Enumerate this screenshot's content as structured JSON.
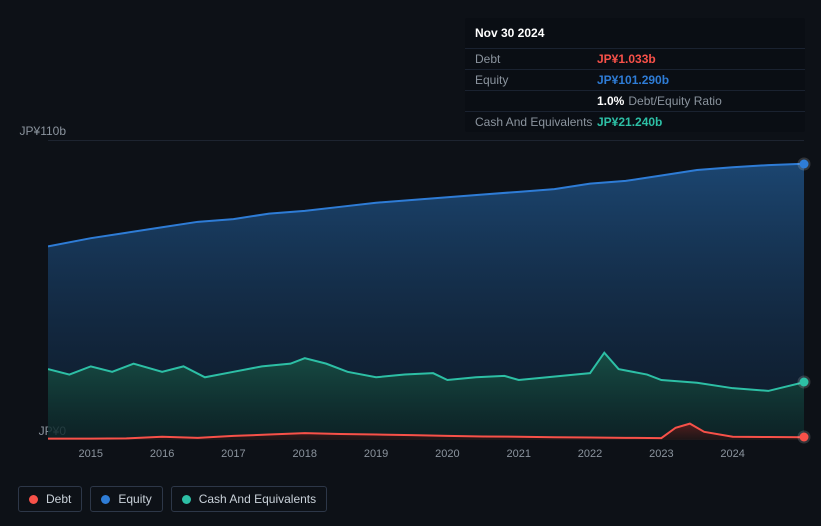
{
  "tooltip": {
    "date": "Nov 30 2024",
    "rows": [
      {
        "label": "Debt",
        "value": "JP¥1.033b",
        "color": "#f85149"
      },
      {
        "label": "Equity",
        "value": "JP¥101.290b",
        "color": "#2e7cd6"
      },
      {
        "label": "",
        "value": "1.0%",
        "sub": "Debt/Equity Ratio",
        "color": "#ffffff"
      },
      {
        "label": "Cash And Equivalents",
        "value": "JP¥21.240b",
        "color": "#2dbfa5"
      }
    ]
  },
  "chart": {
    "type": "area",
    "background_color": "#0d1117",
    "y_axis": {
      "top_label": "JP¥110b",
      "bottom_label": "JP¥0",
      "min": 0,
      "max": 110
    },
    "x_ticks": [
      "2015",
      "2016",
      "2017",
      "2018",
      "2019",
      "2020",
      "2021",
      "2022",
      "2023",
      "2024"
    ],
    "x_min": 2014.4,
    "x_max": 2025.0,
    "series": {
      "equity": {
        "color": "#2e7cd6",
        "fill_top": "#1d4b7a",
        "fill_bottom": "#0f2238",
        "points": [
          [
            2014.4,
            71
          ],
          [
            2015,
            74
          ],
          [
            2015.5,
            76
          ],
          [
            2016,
            78
          ],
          [
            2016.5,
            80
          ],
          [
            2017,
            81
          ],
          [
            2017.5,
            83
          ],
          [
            2018,
            84
          ],
          [
            2018.5,
            85.5
          ],
          [
            2019,
            87
          ],
          [
            2019.5,
            88
          ],
          [
            2020,
            89
          ],
          [
            2020.5,
            90
          ],
          [
            2021,
            91
          ],
          [
            2021.5,
            92
          ],
          [
            2022,
            94
          ],
          [
            2022.5,
            95
          ],
          [
            2023,
            97
          ],
          [
            2023.5,
            99
          ],
          [
            2024,
            100
          ],
          [
            2024.5,
            100.8
          ],
          [
            2025,
            101.3
          ]
        ]
      },
      "cash": {
        "color": "#2dbfa5",
        "fill_top": "#174f45",
        "fill_bottom": "#0c2623",
        "points": [
          [
            2014.4,
            26
          ],
          [
            2014.7,
            24
          ],
          [
            2015,
            27
          ],
          [
            2015.3,
            25
          ],
          [
            2015.6,
            28
          ],
          [
            2016,
            25
          ],
          [
            2016.3,
            27
          ],
          [
            2016.6,
            23
          ],
          [
            2017,
            25
          ],
          [
            2017.4,
            27
          ],
          [
            2017.8,
            28
          ],
          [
            2018,
            30
          ],
          [
            2018.3,
            28
          ],
          [
            2018.6,
            25
          ],
          [
            2019,
            23
          ],
          [
            2019.4,
            24
          ],
          [
            2019.8,
            24.5
          ],
          [
            2020,
            22
          ],
          [
            2020.4,
            23
          ],
          [
            2020.8,
            23.5
          ],
          [
            2021,
            22
          ],
          [
            2021.4,
            23
          ],
          [
            2021.8,
            24
          ],
          [
            2022,
            24.5
          ],
          [
            2022.2,
            32
          ],
          [
            2022.4,
            26
          ],
          [
            2022.8,
            24
          ],
          [
            2023,
            22
          ],
          [
            2023.5,
            21
          ],
          [
            2024,
            19
          ],
          [
            2024.5,
            18
          ],
          [
            2025,
            21.2
          ]
        ]
      },
      "debt": {
        "color": "#f85149",
        "fill_top": "#5a1f1f",
        "fill_bottom": "#2a0f0f",
        "points": [
          [
            2014.4,
            0.5
          ],
          [
            2015,
            0.5
          ],
          [
            2015.5,
            0.6
          ],
          [
            2016,
            1.2
          ],
          [
            2016.5,
            0.8
          ],
          [
            2017,
            1.5
          ],
          [
            2017.5,
            2.0
          ],
          [
            2018,
            2.5
          ],
          [
            2018.5,
            2.2
          ],
          [
            2019,
            2.0
          ],
          [
            2019.5,
            1.8
          ],
          [
            2020,
            1.5
          ],
          [
            2020.5,
            1.3
          ],
          [
            2021,
            1.2
          ],
          [
            2021.5,
            1.0
          ],
          [
            2022,
            0.9
          ],
          [
            2022.5,
            0.8
          ],
          [
            2023,
            0.7
          ],
          [
            2023.2,
            4.5
          ],
          [
            2023.4,
            6
          ],
          [
            2023.6,
            3
          ],
          [
            2024,
            1.2
          ],
          [
            2024.5,
            1.1
          ],
          [
            2025,
            1.0
          ]
        ]
      }
    }
  },
  "legend": [
    {
      "label": "Debt",
      "color": "#f85149"
    },
    {
      "label": "Equity",
      "color": "#2e7cd6"
    },
    {
      "label": "Cash And Equivalents",
      "color": "#2dbfa5"
    }
  ]
}
